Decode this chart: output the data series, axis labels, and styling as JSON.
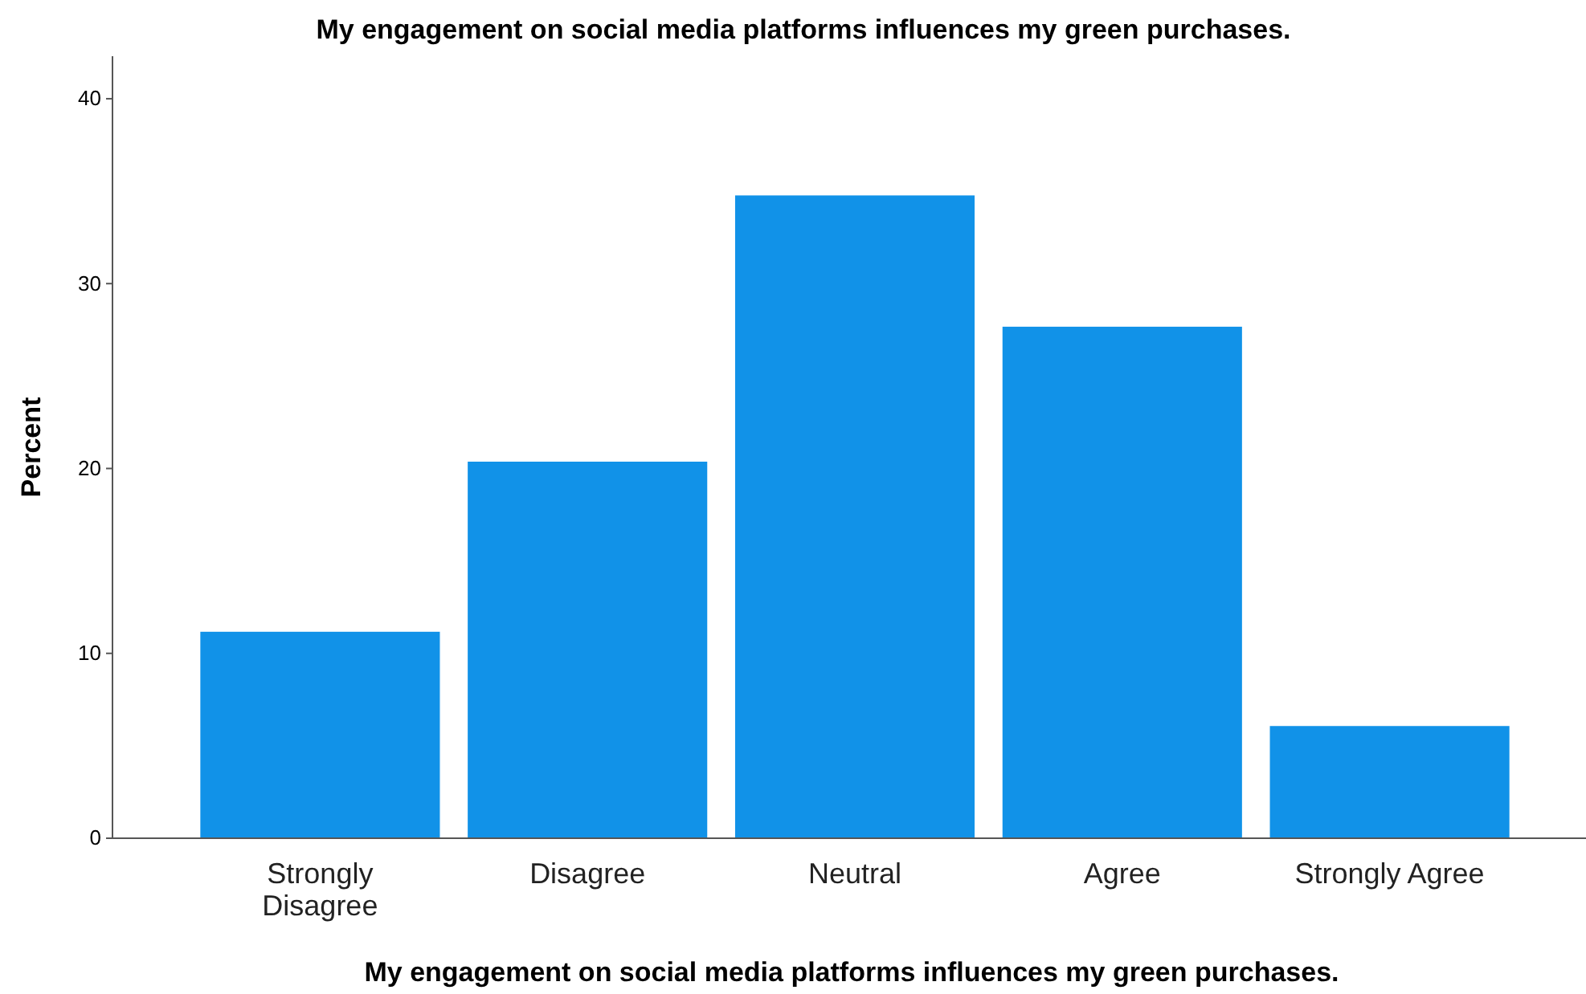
{
  "chart_data": {
    "type": "bar",
    "title": "My engagement on social media platforms influences my green purchases.",
    "xlabel": "My engagement on social media platforms influences my green purchases.",
    "ylabel": "Percent",
    "categories": [
      "Strongly Disagree",
      "Disagree",
      "Neutral",
      "Agree",
      "Strongly Agree"
    ],
    "values": [
      11.2,
      20.4,
      34.8,
      27.7,
      6.1
    ],
    "color": "#1192e8",
    "ylim": [
      0,
      42.3
    ],
    "yticks": [
      0,
      10,
      20,
      30,
      40
    ],
    "grid": false
  }
}
